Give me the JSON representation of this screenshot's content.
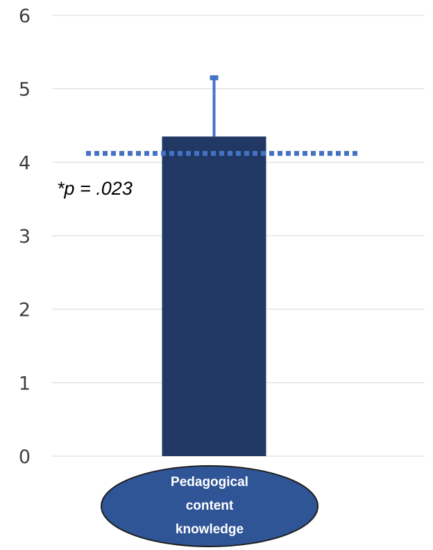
{
  "chart_data": {
    "type": "bar",
    "categories": [
      "Pedagogical content knowledge"
    ],
    "category_label_lines": [
      "Pedagogical",
      "content",
      "knowledge"
    ],
    "values": [
      4.35
    ],
    "error_upper": [
      5.15
    ],
    "reference_line": 4.12,
    "annotation": "*p = .023",
    "ylim": [
      0,
      6
    ],
    "yticks": [
      "0",
      "1",
      "2",
      "3",
      "4",
      "5",
      "6"
    ],
    "grid": true,
    "title": "",
    "xlabel": "",
    "ylabel": ""
  },
  "colors": {
    "bar": "#213864",
    "error_bar": "#4472c4",
    "reference_line": "#4472c4",
    "gridline": "#d9d9d9",
    "category_ellipse_fill": "#2f5597",
    "category_ellipse_stroke": "#1f1f1f",
    "category_text": "#ffffff",
    "tick_text": "#404040"
  }
}
